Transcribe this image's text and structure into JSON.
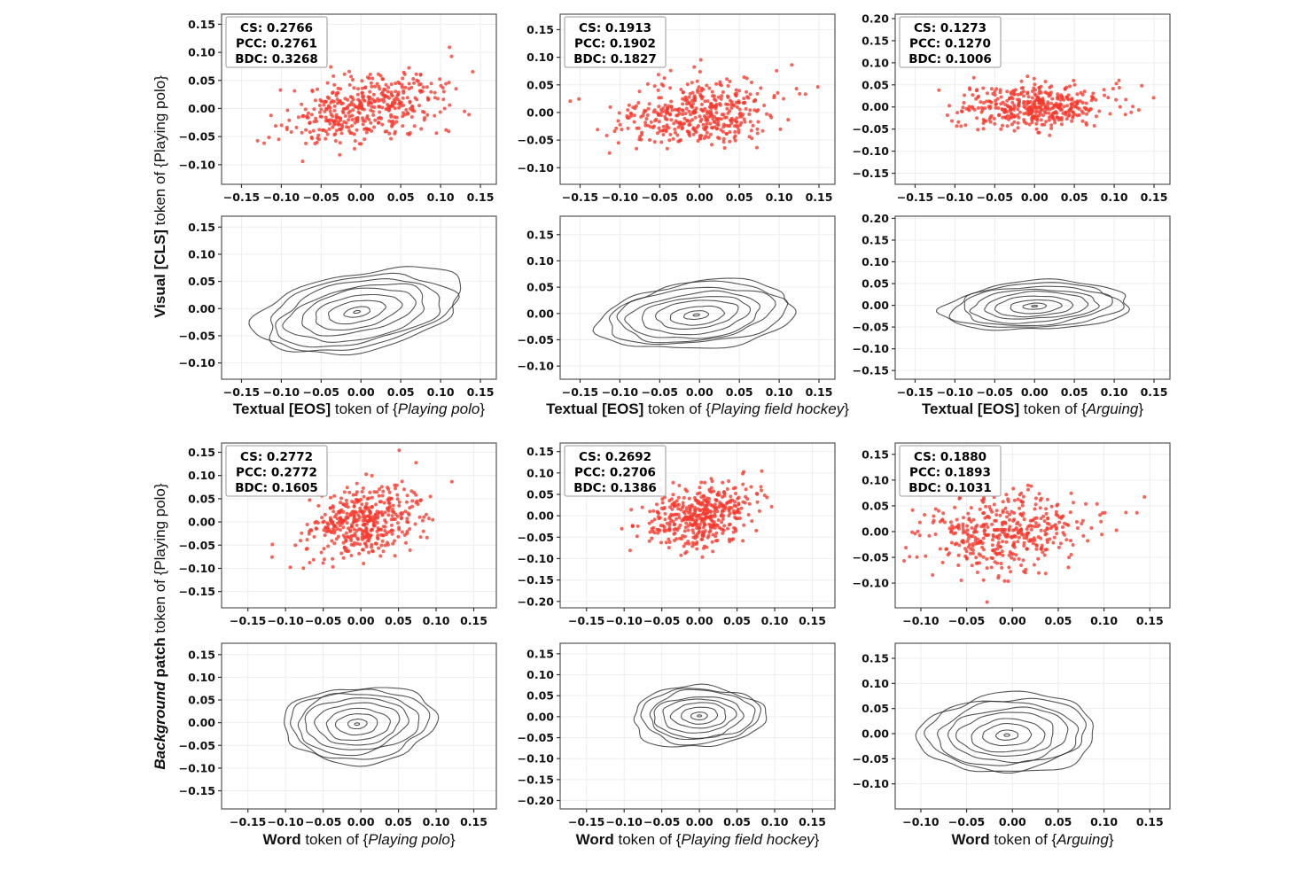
{
  "row_labels": [
    {
      "name": "visual-cls-row",
      "runs": [
        {
          "t": "Visual [CLS]",
          "s": "b"
        },
        {
          "t": " token  of {Playing polo}",
          "s": "n"
        }
      ]
    },
    {
      "name": "background-patch-row",
      "runs": [
        {
          "t": "Background",
          "s": "bi"
        },
        {
          "t": " patch",
          "s": "b"
        },
        {
          "t": " token of {Playing polo}",
          "s": "n"
        }
      ]
    }
  ],
  "column_titles_mid": [
    {
      "runs": [
        {
          "t": "Textual [EOS]",
          "s": "b"
        },
        {
          "t": " token of {",
          "s": "n"
        },
        {
          "t": "Playing polo",
          "s": "i"
        },
        {
          "t": "}",
          "s": "n"
        }
      ]
    },
    {
      "runs": [
        {
          "t": "Textual [EOS]",
          "s": "b"
        },
        {
          "t": " token of {",
          "s": "n"
        },
        {
          "t": "Playing field hockey",
          "s": "i"
        },
        {
          "t": "}",
          "s": "n"
        }
      ]
    },
    {
      "runs": [
        {
          "t": "Textual [EOS]",
          "s": "b"
        },
        {
          "t": " token of {",
          "s": "n"
        },
        {
          "t": "Arguing",
          "s": "i"
        },
        {
          "t": "}",
          "s": "n"
        }
      ]
    }
  ],
  "column_titles_bottom": [
    {
      "runs": [
        {
          "t": "Word",
          "s": "b"
        },
        {
          "t": " token of {",
          "s": "n"
        },
        {
          "t": "Playing polo",
          "s": "i"
        },
        {
          "t": "}",
          "s": "n"
        }
      ]
    },
    {
      "runs": [
        {
          "t": "Word",
          "s": "b"
        },
        {
          "t": " token of {",
          "s": "n"
        },
        {
          "t": "Playing field hockey",
          "s": "i"
        },
        {
          "t": "}",
          "s": "n"
        }
      ]
    },
    {
      "runs": [
        {
          "t": "Word",
          "s": "b"
        },
        {
          "t": " token of {",
          "s": "n"
        },
        {
          "t": "Arguing",
          "s": "i"
        },
        {
          "t": "}",
          "s": "n"
        }
      ]
    }
  ],
  "stat_labels": [
    "CS",
    "PCC",
    "BDC"
  ],
  "colors": {
    "scatter_dot": "#f6372b",
    "contour_line": "#2b2b2b",
    "grid": "#ededed",
    "spine": "#555555",
    "tick": "#333333",
    "stats_border": "#999999",
    "text": "#111111"
  },
  "chart_data": [
    {
      "id": "r1c1",
      "row": 1,
      "col": 1,
      "type": "scatter",
      "seed": 11,
      "stats": {
        "CS": "0.2766",
        "PCC": "0.2761",
        "BDC": "0.3268"
      },
      "x_ticks": [
        -0.15,
        -0.1,
        -0.05,
        0,
        0.05,
        0.1,
        0.15
      ],
      "y_ticks": [
        0.15,
        0.1,
        0.05,
        0,
        -0.05,
        -0.1
      ],
      "xlim": [
        -0.175,
        0.17
      ],
      "ylim": [
        -0.135,
        0.168
      ],
      "dist": {
        "n": 430,
        "cx": 0.004,
        "cy": 0.001,
        "sx": 0.047,
        "sy": 0.03,
        "rho": 0.28
      }
    },
    {
      "id": "r1c2",
      "row": 1,
      "col": 2,
      "type": "scatter",
      "seed": 22,
      "stats": {
        "CS": "0.1913",
        "PCC": "0.1902",
        "BDC": "0.1827"
      },
      "x_ticks": [
        -0.15,
        -0.1,
        -0.05,
        0,
        0.05,
        0.1,
        0.15
      ],
      "y_ticks": [
        0.15,
        0.1,
        0.05,
        0,
        -0.05,
        -0.1
      ],
      "xlim": [
        -0.175,
        0.17
      ],
      "ylim": [
        -0.13,
        0.178
      ],
      "dist": {
        "n": 430,
        "cx": -0.002,
        "cy": 0.0,
        "sx": 0.048,
        "sy": 0.03,
        "rho": 0.19
      }
    },
    {
      "id": "r1c3",
      "row": 1,
      "col": 3,
      "type": "scatter",
      "seed": 33,
      "stats": {
        "CS": "0.1273",
        "PCC": "0.1270",
        "BDC": "0.1006"
      },
      "x_ticks": [
        -0.15,
        -0.1,
        -0.05,
        0,
        0.05,
        0.1,
        0.15
      ],
      "y_ticks": [
        0.2,
        0.15,
        0.1,
        0.05,
        0,
        -0.05,
        -0.1,
        -0.15
      ],
      "xlim": [
        -0.175,
        0.17
      ],
      "ylim": [
        -0.175,
        0.21
      ],
      "dist": {
        "n": 430,
        "cx": 0.0,
        "cy": 0.0,
        "sx": 0.047,
        "sy": 0.027,
        "rho": 0.13
      }
    },
    {
      "id": "r2c1",
      "row": 2,
      "col": 1,
      "type": "contour",
      "seed": 111,
      "x_ticks": [
        -0.15,
        -0.1,
        -0.05,
        0,
        0.05,
        0.1,
        0.15
      ],
      "y_ticks": [
        0.15,
        0.1,
        0.05,
        0,
        -0.05,
        -0.1
      ],
      "xlim": [
        -0.175,
        0.17
      ],
      "ylim": [
        -0.13,
        0.17
      ],
      "contour": {
        "levels": 9,
        "cx": -0.005,
        "cy": -0.006,
        "a": 0.135,
        "b": 0.07,
        "tilt": 18,
        "shrink": 0.097
      }
    },
    {
      "id": "r2c2",
      "row": 2,
      "col": 2,
      "type": "contour",
      "seed": 122,
      "x_ticks": [
        -0.15,
        -0.1,
        -0.05,
        0,
        0.05,
        0.1,
        0.15
      ],
      "y_ticks": [
        0.15,
        0.1,
        0.05,
        0,
        -0.05,
        -0.1
      ],
      "xlim": [
        -0.175,
        0.17
      ],
      "ylim": [
        -0.125,
        0.185
      ],
      "contour": {
        "levels": 9,
        "cx": -0.004,
        "cy": -0.003,
        "a": 0.125,
        "b": 0.063,
        "tilt": 10,
        "shrink": 0.097
      }
    },
    {
      "id": "r2c3",
      "row": 2,
      "col": 3,
      "type": "contour",
      "seed": 133,
      "x_ticks": [
        -0.15,
        -0.1,
        -0.05,
        0,
        0.05,
        0.1,
        0.15
      ],
      "y_ticks": [
        0.2,
        0.15,
        0.1,
        0.05,
        0,
        -0.05,
        -0.1,
        -0.15
      ],
      "xlim": [
        -0.175,
        0.17
      ],
      "ylim": [
        -0.17,
        0.205
      ],
      "contour": {
        "levels": 9,
        "cx": 0.0,
        "cy": -0.002,
        "a": 0.118,
        "b": 0.056,
        "tilt": 6,
        "shrink": 0.097
      }
    },
    {
      "id": "r3c1",
      "row": 3,
      "col": 1,
      "type": "scatter",
      "seed": 44,
      "stats": {
        "CS": "0.2772",
        "PCC": "0.2772",
        "BDC": "0.1605"
      },
      "x_ticks": [
        -0.15,
        -0.1,
        -0.05,
        0,
        0.05,
        0.1,
        0.15
      ],
      "y_ticks": [
        0.15,
        0.1,
        0.05,
        0,
        -0.05,
        -0.1,
        -0.15
      ],
      "xlim": [
        -0.185,
        0.18
      ],
      "ylim": [
        -0.185,
        0.17
      ],
      "dist": {
        "n": 430,
        "cx": 0.0,
        "cy": 0.0,
        "sx": 0.037,
        "sy": 0.04,
        "rho": 0.28
      }
    },
    {
      "id": "r3c2",
      "row": 3,
      "col": 2,
      "type": "scatter",
      "seed": 55,
      "stats": {
        "CS": "0.2692",
        "PCC": "0.2706",
        "BDC": "0.1386"
      },
      "x_ticks": [
        -0.15,
        -0.1,
        -0.05,
        0,
        0.05,
        0.1,
        0.15
      ],
      "y_ticks": [
        0.15,
        0.1,
        0.05,
        0,
        -0.05,
        -0.1,
        -0.15,
        -0.2
      ],
      "xlim": [
        -0.185,
        0.18
      ],
      "ylim": [
        -0.215,
        0.17
      ],
      "dist": {
        "n": 430,
        "cx": 0.0,
        "cy": 0.0,
        "sx": 0.037,
        "sy": 0.037,
        "rho": 0.27
      }
    },
    {
      "id": "r3c3",
      "row": 3,
      "col": 3,
      "type": "scatter",
      "seed": 66,
      "stats": {
        "CS": "0.1880",
        "PCC": "0.1893",
        "BDC": "0.1031"
      },
      "x_ticks": [
        -0.1,
        -0.05,
        0,
        0.05,
        0.1,
        0.15
      ],
      "y_ticks": [
        0.15,
        0.1,
        0.05,
        0,
        -0.05,
        -0.1
      ],
      "xlim": [
        -0.128,
        0.172
      ],
      "ylim": [
        -0.148,
        0.172
      ],
      "dist": {
        "n": 430,
        "cx": -0.005,
        "cy": 0.0,
        "sx": 0.041,
        "sy": 0.036,
        "rho": 0.19
      }
    },
    {
      "id": "r4c1",
      "row": 4,
      "col": 1,
      "type": "contour",
      "seed": 144,
      "x_ticks": [
        -0.15,
        -0.1,
        -0.05,
        0,
        0.05,
        0.1,
        0.15
      ],
      "y_ticks": [
        0.15,
        0.1,
        0.05,
        0,
        -0.05,
        -0.1,
        -0.15
      ],
      "xlim": [
        -0.185,
        0.18
      ],
      "ylim": [
        -0.19,
        0.175
      ],
      "contour": {
        "levels": 9,
        "cx": -0.005,
        "cy": -0.003,
        "a": 0.102,
        "b": 0.084,
        "tilt": 12,
        "shrink": 0.097
      }
    },
    {
      "id": "r4c2",
      "row": 4,
      "col": 2,
      "type": "contour",
      "seed": 155,
      "x_ticks": [
        -0.15,
        -0.1,
        -0.05,
        0,
        0.05,
        0.1,
        0.15
      ],
      "y_ticks": [
        0.15,
        0.1,
        0.05,
        0,
        -0.05,
        -0.1,
        -0.15,
        -0.2
      ],
      "xlim": [
        -0.185,
        0.18
      ],
      "ylim": [
        -0.22,
        0.175
      ],
      "contour": {
        "levels": 9,
        "cx": 0.0,
        "cy": 0.002,
        "a": 0.088,
        "b": 0.073,
        "tilt": 8,
        "shrink": 0.097
      }
    },
    {
      "id": "r4c3",
      "row": 4,
      "col": 3,
      "type": "contour",
      "seed": 166,
      "x_ticks": [
        -0.1,
        -0.05,
        0,
        0.05,
        0.1,
        0.15
      ],
      "y_ticks": [
        0.15,
        0.1,
        0.05,
        0,
        -0.05,
        -0.1
      ],
      "xlim": [
        -0.128,
        0.172
      ],
      "ylim": [
        -0.15,
        0.18
      ],
      "contour": {
        "levels": 9,
        "cx": -0.006,
        "cy": -0.003,
        "a": 0.097,
        "b": 0.079,
        "tilt": 10,
        "shrink": 0.097
      }
    }
  ]
}
